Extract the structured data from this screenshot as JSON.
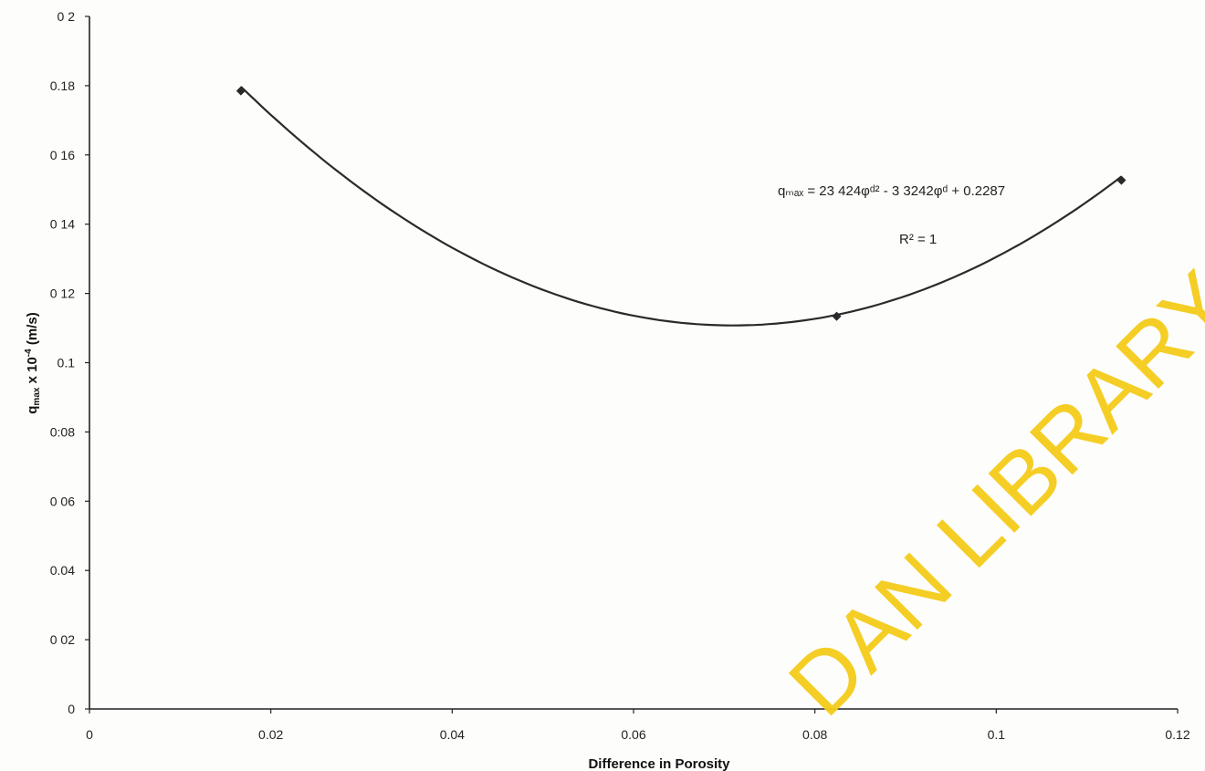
{
  "chart_data": {
    "type": "scatter",
    "title": "",
    "xlabel": "Difference in Porosity",
    "ylabel_main": "q",
    "ylabel_sub": "max",
    "ylabel_mid": " x 10",
    "ylabel_exp": "-4",
    "ylabel_end": " (m/s)",
    "xlim": [
      0,
      0.12
    ],
    "ylim": [
      0,
      0.2
    ],
    "x_ticks": [
      0,
      0.02,
      0.04,
      0.06,
      0.08,
      0.1,
      0.12
    ],
    "x_tick_labels": [
      "0",
      "0.02",
      "0.04",
      "0.06",
      "0.08",
      "0.1",
      "0.12"
    ],
    "y_ticks": [
      0,
      0.02,
      0.04,
      0.06,
      0.08,
      0.1,
      0.12,
      0.14,
      0.16,
      0.18,
      0.2
    ],
    "y_tick_labels": [
      "0",
      "0 02",
      "0.04",
      "0 06",
      "0:08",
      "0.1",
      "0 12",
      "0 14",
      "0 16",
      "0.18",
      "0 2"
    ],
    "grid": false,
    "series": [
      {
        "x": [
          0.0167,
          0.0824,
          0.1138
        ],
        "y": [
          0.1785,
          0.1134,
          0.1527
        ],
        "color": "#2a2a2a"
      }
    ],
    "trendline": {
      "type": "polynomial",
      "coefficients": [
        23.424,
        -3.3242,
        0.2287
      ],
      "x_range": [
        0.0167,
        0.1138
      ],
      "equation_text": "qₘₐₓ = 23 424φᵈ² - 3 3242φᵈ + 0.2287",
      "r2_text": "R² = 1"
    }
  },
  "watermark": "DAN LIBRARY"
}
